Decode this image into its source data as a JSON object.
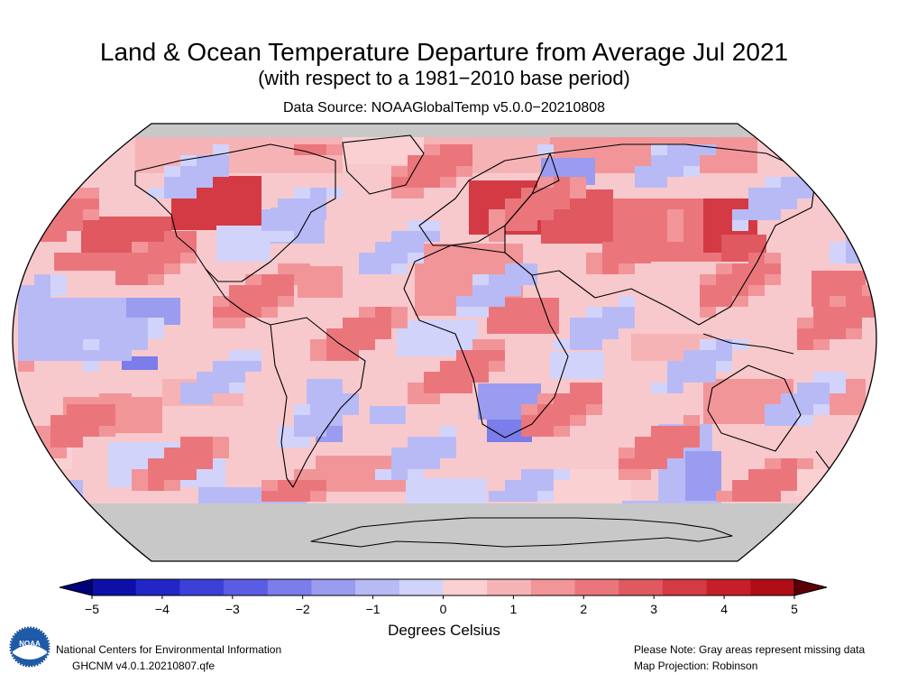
{
  "header": {
    "title": "Land & Ocean Temperature Departure from Average Jul 2021",
    "subtitle": "(with respect to a 1981−2010 base period)",
    "source": "Data Source: NOAAGlobalTemp v5.0.0−20210808"
  },
  "colorbar": {
    "ticks": [
      "−5",
      "−4",
      "−3",
      "−2",
      "−1",
      "0",
      "1",
      "2",
      "3",
      "4",
      "5"
    ],
    "colors": [
      "#0d0fa8",
      "#2226c6",
      "#3d40d8",
      "#5a5de3",
      "#7a7dea",
      "#9a9cf0",
      "#b8baf5",
      "#d2d3fa",
      "#fbd0d2",
      "#f6b3b6",
      "#f19599",
      "#ea767c",
      "#e05860",
      "#d43a43",
      "#c71f29",
      "#b00d17"
    ],
    "units": "Degrees Celsius",
    "low_end_color": "#00007a",
    "high_end_color": "#5c0006"
  },
  "map": {
    "projection_label": "Map Projection: Robinson",
    "missing_color": "#c8c8c8",
    "ocean_base_color": "#f8c9cc"
  },
  "footer": {
    "org": "National Centers for Environmental Information",
    "dataset": "GHCNM v4.0.1.20210807.qfe",
    "note": "Please Note: Gray areas represent missing data",
    "projection": "Map Projection: Robinson",
    "logo_text": "NOAA"
  }
}
